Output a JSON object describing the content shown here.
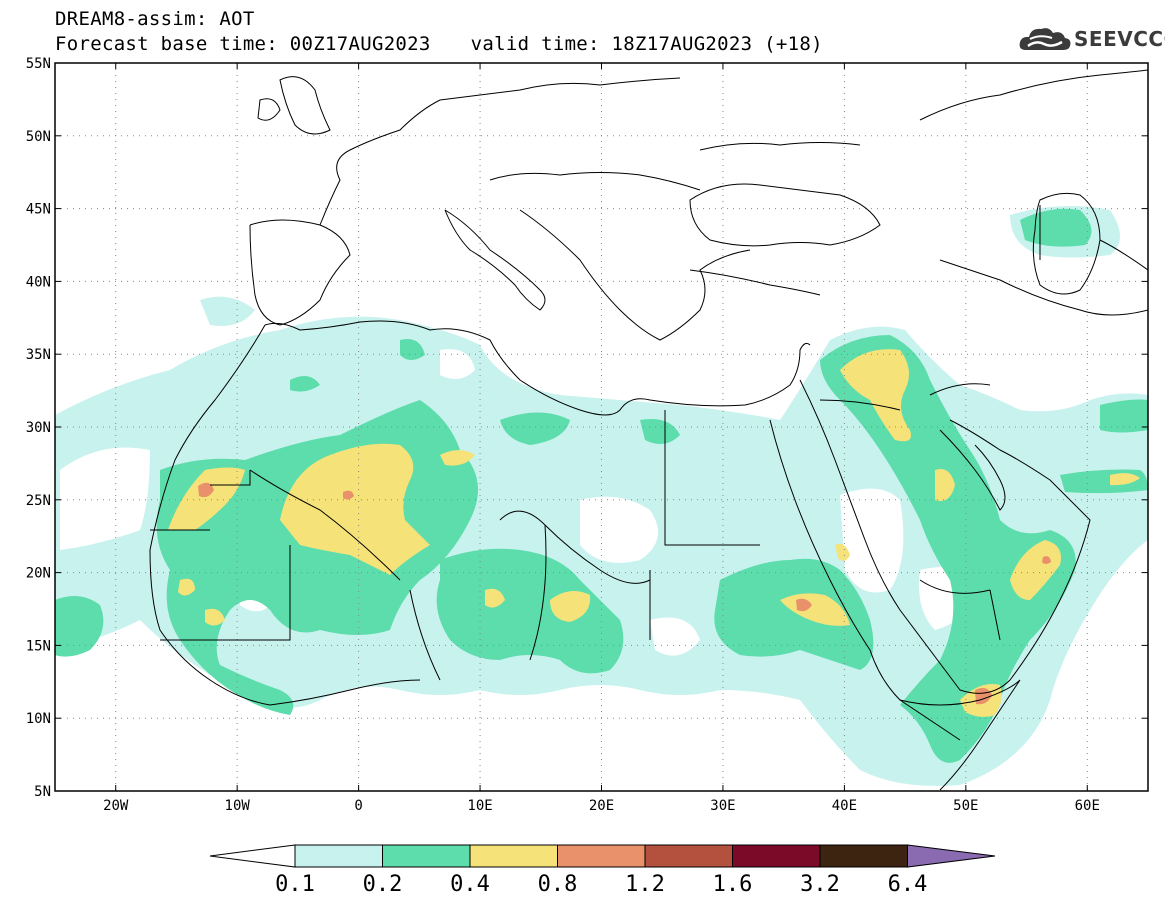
{
  "header": {
    "title": "DREAM8-assim: AOT",
    "base_time": "Forecast base time: 00Z17AUG2023",
    "valid_time": "valid time: 18Z17AUG2023 (+18)"
  },
  "logo": {
    "text": "SEEVCCC",
    "icon": "cloud-icon"
  },
  "map": {
    "latitude_labels": [
      "55N",
      "50N",
      "45N",
      "40N",
      "35N",
      "30N",
      "25N",
      "20N",
      "15N",
      "10N",
      "5N"
    ],
    "longitude_labels": [
      "20W",
      "10W",
      "0",
      "10E",
      "20E",
      "30E",
      "40E",
      "50E",
      "60E"
    ],
    "lat_range": [
      5,
      55
    ],
    "lon_range": [
      -25,
      65
    ],
    "grid": "dotted"
  },
  "colorbar": {
    "labels": [
      "0.1",
      "0.2",
      "0.4",
      "0.8",
      "1.2",
      "1.6",
      "3.2",
      "6.4"
    ],
    "colors": [
      "#c8f2ee",
      "#5ddcac",
      "#f5e37a",
      "#e9916a",
      "#b4503e",
      "#7a0a28",
      "#3d2410",
      "#8a6ab0"
    ]
  },
  "colors": {
    "aot_0_1": "#c8f2ee",
    "aot_0_2": "#5ddcac",
    "aot_0_4": "#f5e37a",
    "aot_0_8": "#e9916a"
  }
}
